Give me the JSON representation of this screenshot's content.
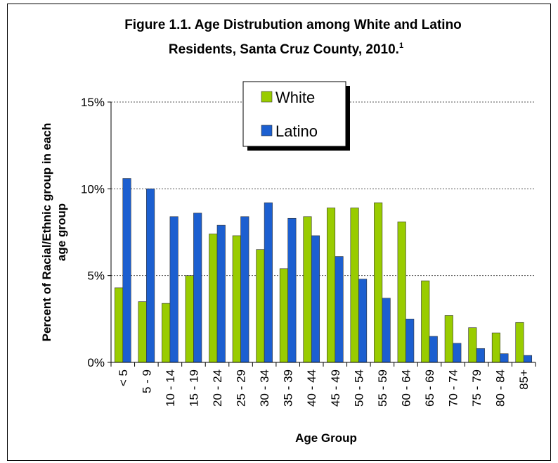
{
  "chart_data": {
    "type": "bar",
    "title_line1": "Figure 1.1. Age Distrubution among White and Latino",
    "title_line2": "Residents, Santa Cruz County, 2010.",
    "title_superscript": "1",
    "xlabel": "Age Group",
    "ylabel_line1": "Percent of Racial/Ethnic group in each",
    "ylabel_line2": "age group",
    "ylim": [
      0,
      15
    ],
    "yticks": [
      0,
      5,
      10,
      15
    ],
    "ytick_labels": [
      "0%",
      "5%",
      "10%",
      "15%"
    ],
    "grid": "horizontal dotted",
    "legend_position": "top-center",
    "categories": [
      "< 5",
      "5 - 9",
      "10 - 14",
      "15 - 19",
      "20 - 24",
      "25 - 29",
      "30 - 34",
      "35 - 39",
      "40 - 44",
      "45 - 49",
      "50 - 54",
      "55 - 59",
      "60 - 64",
      "65 - 69",
      "70 - 74",
      "75 - 79",
      "80 - 84",
      "85+"
    ],
    "series": [
      {
        "name": "White",
        "color": "#99cc00",
        "values": [
          4.3,
          3.5,
          3.4,
          5.0,
          7.4,
          7.3,
          6.5,
          5.4,
          8.4,
          8.9,
          8.9,
          9.2,
          8.1,
          4.7,
          2.7,
          2.0,
          1.7,
          2.3
        ]
      },
      {
        "name": "Latino",
        "color": "#1c5fd0",
        "values": [
          10.6,
          10.0,
          8.4,
          8.6,
          7.9,
          8.4,
          9.2,
          8.3,
          7.3,
          6.1,
          4.8,
          3.7,
          2.5,
          1.5,
          1.1,
          0.8,
          0.5,
          0.4
        ]
      }
    ]
  }
}
